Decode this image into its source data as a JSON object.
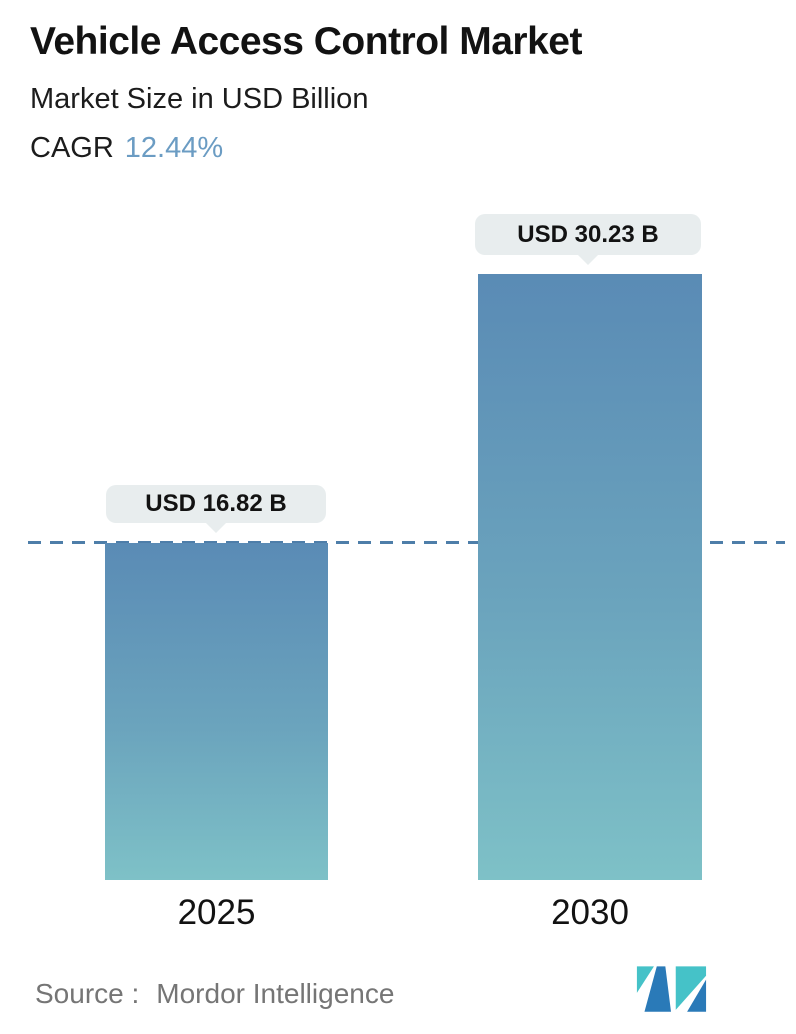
{
  "header": {
    "title": "Vehicle Access Control Market",
    "subtitle": "Market Size in USD Billion",
    "cagr_label": "CAGR",
    "cagr_value": "12.44%"
  },
  "chart_data": {
    "type": "bar",
    "categories": [
      "2025",
      "2030"
    ],
    "values": [
      16.82,
      30.23
    ],
    "value_labels": [
      "USD 16.82 B",
      "USD 30.23 B"
    ],
    "unit": "USD Billion",
    "cagr_percent": 12.44,
    "title": "Vehicle Access Control Market",
    "ylabel": "Market Size in USD Billion",
    "xlabel": "",
    "ylim": [
      0,
      34
    ],
    "grid": false,
    "legend": "none",
    "reference_line": {
      "value": 16.82,
      "style": "dashed"
    }
  },
  "footer": {
    "source_label": "Source :",
    "source_value": "Mordor Intelligence",
    "logo": "mordor-intelligence-logo"
  },
  "colors": {
    "cagr_value_blue": "#6b9cc3",
    "bar_gradient_top": "#5a8bb5",
    "bar_gradient_bottom": "#7ec1c7",
    "dashed_line": "#4e7ea9",
    "tooltip_bg": "#e8edee",
    "source_text": "#757575",
    "logo_teal": "#45c2c8",
    "logo_blue": "#2a7ab8"
  }
}
